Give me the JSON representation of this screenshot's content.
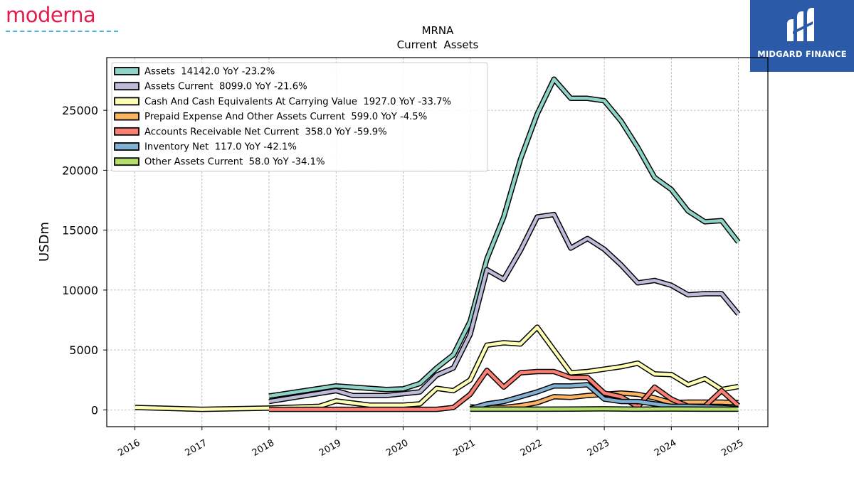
{
  "logos": {
    "left_text": "moderna",
    "right_text": "MIDGARD FINANCE",
    "left_color": "#e31b4b",
    "right_bg": "#2a5aa8"
  },
  "chart_data": {
    "type": "line",
    "title": "MRNA",
    "subtitle": "Current  Assets",
    "ylabel": "USDm",
    "xlabel": "",
    "xlim": [
      2015.58,
      2025.44
    ],
    "ylim": [
      -1400,
      29400
    ],
    "yticks": [
      0,
      5000,
      10000,
      15000,
      20000,
      25000
    ],
    "xticks": [
      "2016",
      "2017",
      "2018",
      "2019",
      "2020",
      "2021",
      "2022",
      "2023",
      "2024",
      "2025"
    ],
    "grid": true,
    "legend_position": "top-left",
    "series": [
      {
        "name": "Assets  14142.0 YoY -23.2%",
        "color": "#8dd3c7",
        "x": [
          2018.0,
          2019.0,
          2019.5,
          2019.75,
          2020.0,
          2020.25,
          2020.5,
          2020.75,
          2021.0,
          2021.25,
          2021.5,
          2021.75,
          2022.0,
          2022.25,
          2022.5,
          2022.75,
          2023.0,
          2023.25,
          2023.5,
          2023.75,
          2024.0,
          2024.25,
          2024.5,
          2024.75,
          2025.0
        ],
        "y": [
          1150,
          2000,
          1800,
          1700,
          1750,
          2200,
          3500,
          4600,
          7400,
          12600,
          16100,
          20900,
          24700,
          27600,
          26000,
          26000,
          25800,
          24100,
          21900,
          19400,
          18400,
          16600,
          15700,
          15800,
          14000
        ]
      },
      {
        "name": "Assets Current  8099.0 YoY -21.6%",
        "color": "#bebada",
        "x": [
          2018.0,
          2019.0,
          2019.25,
          2019.5,
          2019.75,
          2020.0,
          2020.25,
          2020.5,
          2020.75,
          2021.0,
          2021.25,
          2021.5,
          2021.75,
          2022.0,
          2022.25,
          2022.5,
          2022.75,
          2023.0,
          2023.25,
          2023.5,
          2023.75,
          2024.0,
          2024.25,
          2024.5,
          2024.75,
          2025.0
        ],
        "y": [
          700,
          1600,
          1200,
          1200,
          1200,
          1350,
          1500,
          2900,
          3500,
          6300,
          11700,
          10900,
          13300,
          16100,
          16300,
          13500,
          14300,
          13400,
          12100,
          10600,
          10800,
          10400,
          9600,
          9700,
          9700,
          8000
        ]
      },
      {
        "name": "Cash And Cash Equivalents At Carrying Value  1927.0 YoY -33.7%",
        "color": "#ffffb3",
        "x": [
          2016.0,
          2017.0,
          2018.0,
          2018.75,
          2019.0,
          2019.5,
          2020.0,
          2020.25,
          2020.5,
          2020.75,
          2021.0,
          2021.25,
          2021.5,
          2021.75,
          2022.0,
          2022.25,
          2022.5,
          2022.75,
          2023.0,
          2023.25,
          2023.5,
          2023.75,
          2024.0,
          2024.25,
          2024.5,
          2024.75,
          2025.0
        ],
        "y": [
          200,
          50,
          150,
          300,
          750,
          400,
          400,
          500,
          1800,
          1600,
          2500,
          5400,
          5600,
          5500,
          6900,
          5000,
          3100,
          3200,
          3400,
          3600,
          3900,
          3000,
          2950,
          2100,
          2600,
          1700,
          1950
        ]
      },
      {
        "name": "Prepaid Expense And Other Assets Current  599.0 YoY -4.5%",
        "color": "#fdb462",
        "x": [
          2021.0,
          2021.25,
          2021.5,
          2021.75,
          2022.0,
          2022.25,
          2022.5,
          2022.75,
          2023.0,
          2023.25,
          2023.5,
          2023.75,
          2024.0,
          2024.25,
          2024.5,
          2024.75,
          2025.0
        ],
        "y": [
          250,
          200,
          200,
          350,
          600,
          1100,
          1050,
          1200,
          1300,
          1400,
          1300,
          1000,
          600,
          650,
          650,
          650,
          600
        ]
      },
      {
        "name": "Accounts Receivable Net Current  358.0 YoY -59.9%",
        "color": "#fb8072",
        "x": [
          2018.0,
          2019.0,
          2020.0,
          2020.25,
          2020.5,
          2020.75,
          2021.0,
          2021.25,
          2021.5,
          2021.75,
          2022.0,
          2022.25,
          2022.5,
          2022.75,
          2023.0,
          2023.25,
          2023.5,
          2023.75,
          2024.0,
          2024.25,
          2024.5,
          2024.75,
          2025.0
        ],
        "y": [
          50,
          50,
          50,
          50,
          50,
          200,
          1300,
          3300,
          1900,
          3100,
          3200,
          3200,
          2700,
          2700,
          1400,
          1100,
          250,
          1900,
          900,
          300,
          300,
          1600,
          350
        ]
      },
      {
        "name": "Inventory Net  117.0 YoY -42.1%",
        "color": "#80b1d3",
        "x": [
          2021.0,
          2021.25,
          2021.5,
          2021.75,
          2022.0,
          2022.25,
          2022.5,
          2022.75,
          2023.0,
          2023.25,
          2023.5,
          2023.75,
          2024.0,
          2024.25,
          2024.5,
          2024.75,
          2025.0
        ],
        "y": [
          100,
          500,
          700,
          1100,
          1500,
          2000,
          2000,
          2100,
          900,
          700,
          700,
          500,
          300,
          300,
          250,
          200,
          120
        ]
      },
      {
        "name": "Other Assets Current  58.0 YoY -34.1%",
        "color": "#b3de69",
        "x": [
          2021.0,
          2021.5,
          2022.0,
          2022.5,
          2023.0,
          2023.5,
          2024.0,
          2024.5,
          2025.0
        ],
        "y": [
          60,
          60,
          60,
          70,
          90,
          60,
          80,
          60,
          58
        ]
      }
    ]
  }
}
